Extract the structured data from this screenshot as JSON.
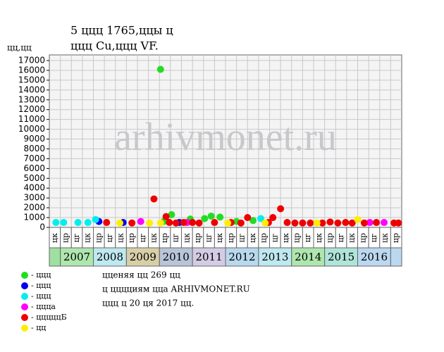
{
  "chart_data": {
    "type": "scatter",
    "title": "5 ццц 1765,ццы ц",
    "subtitle": "ццц Cu,ццц VF.",
    "y_label": "цц,цц",
    "watermark": "arhivmonet.ru",
    "columns": [
      "цк",
      "цр",
      "цг",
      "цк",
      "цр",
      "цг",
      "цк",
      "цр",
      "цг",
      "цк",
      "цр",
      "цг",
      "цк",
      "цр",
      "цг",
      "цк",
      "цр",
      "цг",
      "цк",
      "цр",
      "цг",
      "цк",
      "цр",
      "цг",
      "цк",
      "цр",
      "цг",
      "цк",
      "цр",
      "цг",
      "цк",
      "цр"
    ],
    "years": [
      "2007",
      "2008",
      "2009",
      "2010",
      "2011",
      "2012",
      "2013",
      "2014",
      "2015",
      "2016"
    ],
    "xlim": [
      0,
      32
    ],
    "ylim": [
      0,
      17000
    ],
    "yticks": [
      0,
      1000,
      2000,
      3000,
      4000,
      5000,
      6000,
      7000,
      8000,
      9000,
      10000,
      11000,
      12000,
      13000,
      14000,
      15000,
      16000,
      17000
    ],
    "grid": true,
    "series": [
      {
        "name": "- ццц",
        "color": "#22dd22",
        "x": [
          10.1,
          11.1,
          12.8,
          14.1,
          14.7,
          15.5,
          10.4,
          17.0,
          18.5
        ],
        "values": [
          16100,
          1300,
          850,
          900,
          1150,
          1050,
          600,
          600,
          700
        ]
      },
      {
        "name": "- ццц",
        "color": "#0000ee",
        "x": [
          4.5,
          6.7,
          11.8
        ],
        "values": [
          600,
          500,
          500
        ]
      },
      {
        "name": "- ццц",
        "color": "#00eeee",
        "x": [
          0.6,
          1.3,
          2.6,
          3.5,
          4.2,
          19.2
        ],
        "values": [
          500,
          500,
          500,
          500,
          800,
          900
        ]
      },
      {
        "name": "- ццца",
        "color": "#ff00ff",
        "x": [
          8.3,
          12.5,
          29.1,
          30.4
        ],
        "values": [
          600,
          500,
          500,
          500
        ]
      },
      {
        "name": "- цццццБ",
        "color": "#ee0000",
        "x": [
          9.5,
          10.6,
          18.0,
          20.3,
          21.0,
          5.2,
          7.5,
          10.9,
          11.5,
          12.2,
          13.0,
          13.6,
          15.0,
          16.5,
          17.4,
          19.9,
          21.6,
          22.3,
          23.0,
          23.7,
          24.8,
          25.5,
          26.2,
          26.9,
          27.5,
          28.6,
          29.7,
          31.3,
          31.7
        ],
        "values": [
          2900,
          1100,
          1000,
          1000,
          1900,
          500,
          450,
          500,
          450,
          500,
          500,
          450,
          500,
          500,
          450,
          500,
          500,
          450,
          450,
          450,
          450,
          550,
          450,
          500,
          450,
          450,
          500,
          450,
          450
        ]
      },
      {
        "name": "- цц",
        "color": "#ffee00",
        "x": [
          6.4,
          9.1,
          10.1,
          16.2,
          19.6,
          24.3,
          28.0
        ],
        "values": [
          450,
          450,
          450,
          450,
          450,
          450,
          800
        ]
      }
    ],
    "notes": [
      "цценяя цц 269 цц",
      "ц цццциям цца ARHIVMONET.RU",
      "ццц ц 20 ця 2017 цц."
    ]
  }
}
